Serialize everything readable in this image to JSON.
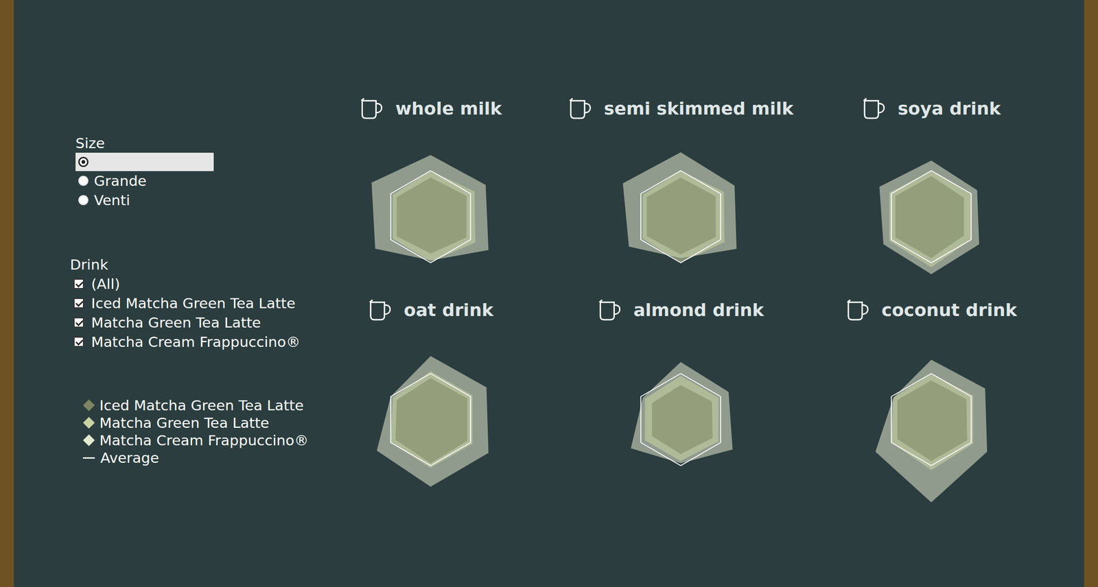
{
  "filters": {
    "size_title": "Size",
    "size_options": [
      "Grande",
      "Venti"
    ],
    "drink_title": "Drink",
    "drink_options": [
      "(All)",
      "Iced Matcha Green Tea Latte",
      "Matcha Green Tea Latte",
      "Matcha Cream Frappuccino®"
    ]
  },
  "chart_data": [
    {
      "type": "radar",
      "title": "whole milk",
      "categories": [
        null,
        null,
        null,
        null,
        null,
        null
      ],
      "ylim": [
        0,
        1.9
      ],
      "tick_labels": false,
      "grid": false,
      "series": [
        {
          "name": "Iced Matcha Green Tea Latte",
          "type": "area",
          "color": "#7d8660",
          "values": [
            0.85,
            0.9,
            0.9,
            0.8,
            0.85,
            0.85
          ]
        },
        {
          "name": "Matcha Green Tea Latte",
          "type": "area",
          "color": "#c9d4a2",
          "values": [
            1.0,
            1.1,
            1.12,
            0.98,
            0.95,
            0.95
          ]
        },
        {
          "name": "Matcha Cream Frappuccino®",
          "type": "area",
          "color": "#e3ead0",
          "values": [
            1.34,
            1.38,
            1.45,
            0.95,
            1.39,
            1.48
          ]
        },
        {
          "name": "Average",
          "type": "line",
          "color": "#ffffff",
          "values": [
            1,
            1,
            1,
            1,
            1,
            1
          ]
        }
      ]
    },
    {
      "type": "radar",
      "title": "semi skimmed milk",
      "categories": [
        null,
        null,
        null,
        null,
        null,
        null
      ],
      "ylim": [
        0,
        1.9
      ],
      "tick_labels": false,
      "grid": false,
      "series": [
        {
          "name": "Iced Matcha Green Tea Latte",
          "type": "area",
          "color": "#7d8660",
          "values": [
            0.85,
            0.88,
            0.88,
            0.82,
            0.85,
            0.85
          ]
        },
        {
          "name": "Matcha Green Tea Latte",
          "type": "area",
          "color": "#c9d4a2",
          "values": [
            1.0,
            1.08,
            1.1,
            1.0,
            0.95,
            0.95
          ]
        },
        {
          "name": "Matcha Cream Frappuccino®",
          "type": "area",
          "color": "#e3ead0",
          "values": [
            1.4,
            1.35,
            1.4,
            0.9,
            1.3,
            1.45
          ]
        },
        {
          "name": "Average",
          "type": "line",
          "color": "#ffffff",
          "values": [
            1,
            1,
            1,
            1,
            1,
            1
          ]
        }
      ]
    },
    {
      "type": "radar",
      "title": "soya drink",
      "categories": [
        null,
        null,
        null,
        null,
        null,
        null
      ],
      "ylim": [
        0,
        1.9
      ],
      "tick_labels": false,
      "grid": false,
      "series": [
        {
          "name": "Iced Matcha Green Tea Latte",
          "type": "area",
          "color": "#7d8660",
          "values": [
            0.88,
            0.82,
            0.82,
            0.9,
            0.9,
            0.9
          ]
        },
        {
          "name": "Matcha Green Tea Latte",
          "type": "area",
          "color": "#c9d4a2",
          "values": [
            1.0,
            1.0,
            1.0,
            1.1,
            1.05,
            1.05
          ]
        },
        {
          "name": "Matcha Cream Frappuccino®",
          "type": "area",
          "color": "#e3ead0",
          "values": [
            1.22,
            1.15,
            1.2,
            1.25,
            1.2,
            1.3
          ]
        },
        {
          "name": "Average",
          "type": "line",
          "color": "#ffffff",
          "values": [
            1,
            1,
            1,
            1,
            1,
            1
          ]
        }
      ]
    },
    {
      "type": "radar",
      "title": "oat drink",
      "categories": [
        null,
        null,
        null,
        null,
        null,
        null
      ],
      "ylim": [
        0,
        1.9
      ],
      "tick_labels": false,
      "grid": false,
      "series": [
        {
          "name": "Iced Matcha Green Tea Latte",
          "type": "area",
          "color": "#7d8660",
          "values": [
            0.9,
            0.92,
            0.92,
            0.95,
            0.88,
            0.85
          ]
        },
        {
          "name": "Matcha Green Tea Latte",
          "type": "area",
          "color": "#c9d4a2",
          "values": [
            1.05,
            1.05,
            1.05,
            1.05,
            1.0,
            0.95
          ]
        },
        {
          "name": "Matcha Cream Frappuccino®",
          "type": "area",
          "color": "#e3ead0",
          "values": [
            1.38,
            1.4,
            1.45,
            1.46,
            1.35,
            1.0
          ]
        },
        {
          "name": "Average",
          "type": "line",
          "color": "#ffffff",
          "values": [
            1,
            1,
            1,
            1,
            1,
            1
          ]
        }
      ]
    },
    {
      "type": "radar",
      "title": "almond drink",
      "categories": [
        null,
        null,
        null,
        null,
        null,
        null
      ],
      "ylim": [
        0,
        1.9
      ],
      "tick_labels": false,
      "grid": false,
      "series": [
        {
          "name": "Iced Matcha Green Tea Latte",
          "type": "area",
          "color": "#7d8660",
          "values": [
            0.75,
            0.78,
            0.8,
            0.75,
            0.72,
            0.72
          ]
        },
        {
          "name": "Matcha Green Tea Latte",
          "type": "area",
          "color": "#c9d4a2",
          "values": [
            0.95,
            0.95,
            0.95,
            0.9,
            0.9,
            0.9
          ]
        },
        {
          "name": "Matcha Cream Frappuccino®",
          "type": "area",
          "color": "#e3ead0",
          "values": [
            1.25,
            1.2,
            1.3,
            0.95,
            1.25,
            0.95
          ]
        },
        {
          "name": "Average",
          "type": "line",
          "color": "#ffffff",
          "values": [
            1,
            1,
            1,
            1,
            1,
            1
          ]
        }
      ]
    },
    {
      "type": "radar",
      "title": "coconut drink",
      "categories": [
        null,
        null,
        null,
        null,
        null,
        null
      ],
      "ylim": [
        0,
        1.9
      ],
      "tick_labels": false,
      "grid": false,
      "series": [
        {
          "name": "Iced Matcha Green Tea Latte",
          "type": "area",
          "color": "#7d8660",
          "values": [
            0.85,
            0.88,
            0.9,
            0.9,
            0.85,
            0.85
          ]
        },
        {
          "name": "Matcha Green Tea Latte",
          "type": "area",
          "color": "#c9d4a2",
          "values": [
            1.0,
            1.05,
            1.05,
            1.1,
            1.0,
            0.95
          ]
        },
        {
          "name": "Matcha Cream Frappuccino®",
          "type": "area",
          "color": "#e3ead0",
          "values": [
            1.3,
            1.35,
            1.4,
            1.8,
            1.4,
            0.95
          ]
        },
        {
          "name": "Average",
          "type": "line",
          "color": "#ffffff",
          "values": [
            1,
            1,
            1,
            1,
            1,
            1
          ]
        }
      ]
    }
  ]
}
